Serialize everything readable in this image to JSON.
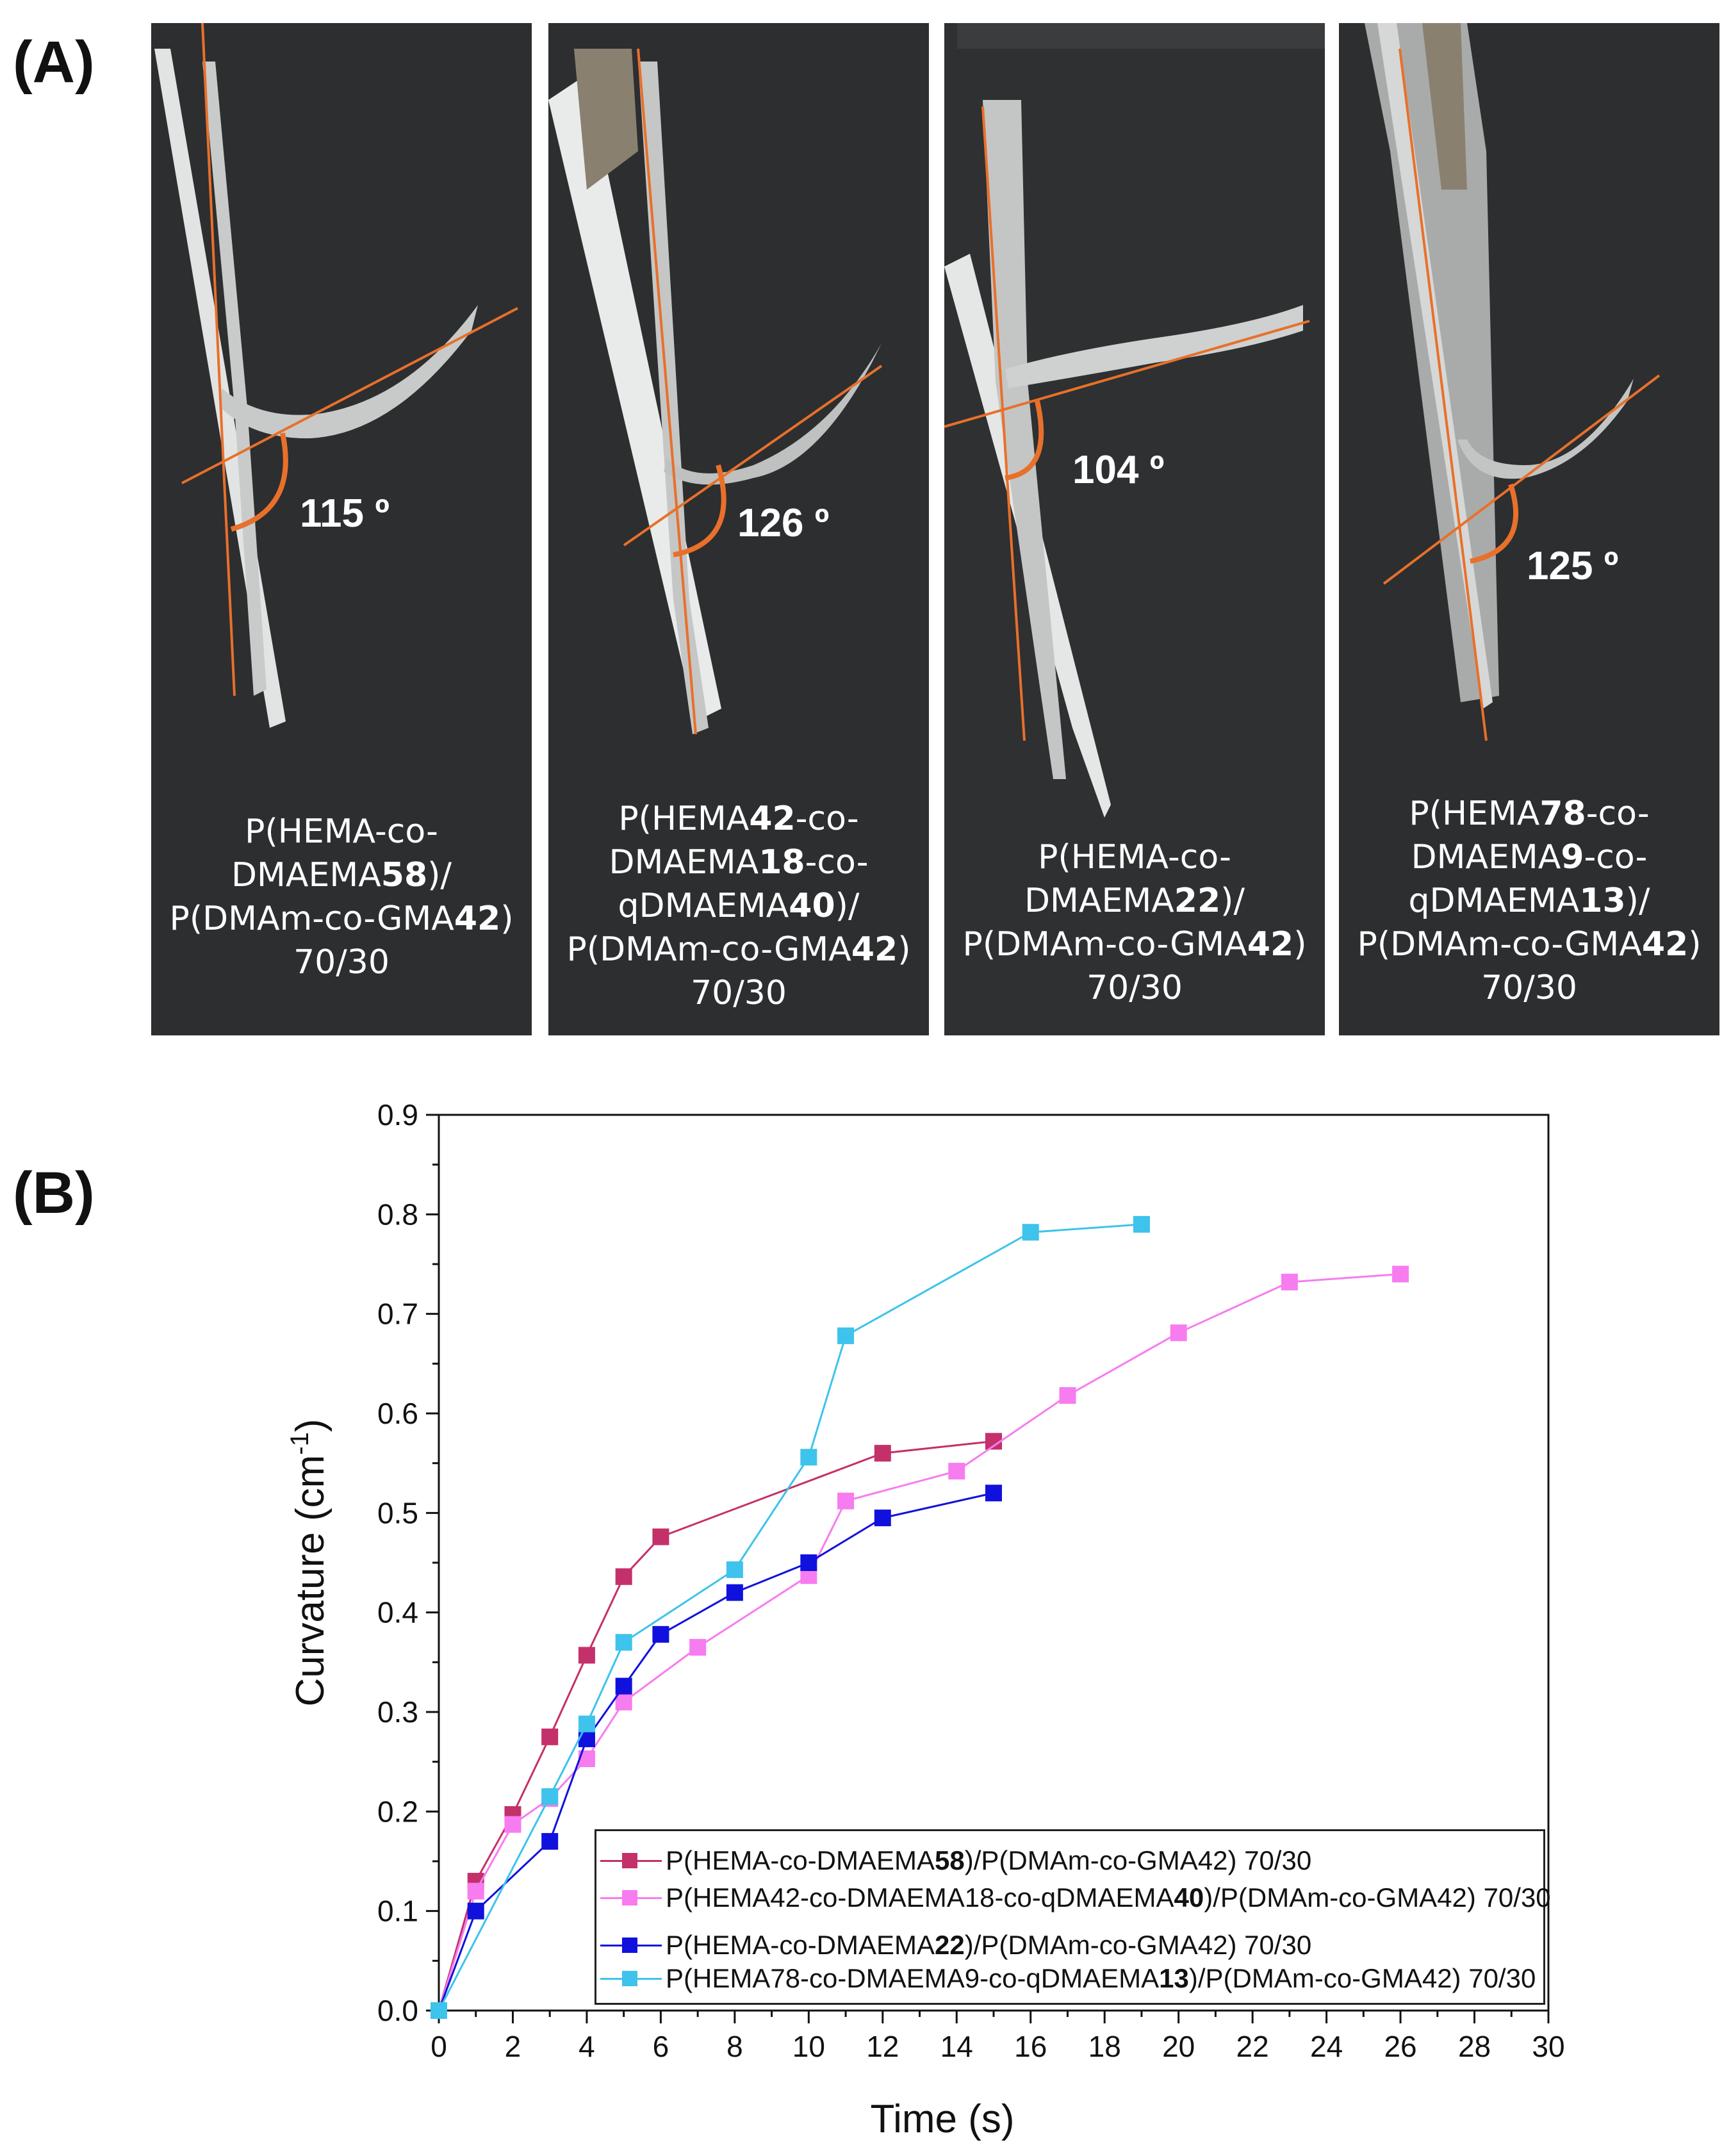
{
  "panel_a": {
    "label": "(A)",
    "photos": [
      {
        "angle": "115 º",
        "caption": [
          "P(HEMA-co-",
          "DMAEMA58)/",
          "P(DMAm-co-GMA42)",
          "70/30"
        ]
      },
      {
        "angle": "126 º",
        "caption": [
          "P(HEMA42-co-",
          "DMAEMA18-co-",
          "qDMAEMA40)/",
          "P(DMAm-co-GMA42)",
          "70/30"
        ]
      },
      {
        "angle": "104 º",
        "caption": [
          "P(HEMA-co-",
          "DMAEMA22)/",
          "P(DMAm-co-GMA42)",
          "70/30"
        ]
      },
      {
        "angle": "125 º",
        "caption": [
          "P(HEMA78-co-",
          "DMAEMA9-co-",
          "qDMAEMA13)/",
          "P(DMAm-co-GMA42)",
          "70/30"
        ]
      }
    ]
  },
  "panel_b": {
    "label": "(B)"
  },
  "colors": {
    "line_orange": "#e8702a",
    "photo_bg": "#2c2e30",
    "strip": "#e9ebea"
  },
  "chart_data": {
    "type": "line",
    "xlabel": "Time (s)",
    "ylabel": "Curvature (cm-1)",
    "xlim": [
      0,
      30
    ],
    "ylim": [
      0,
      0.9
    ],
    "xticks": [
      "0",
      "2",
      "4",
      "6",
      "8",
      "10",
      "12",
      "14",
      "16",
      "18",
      "20",
      "22",
      "24",
      "26",
      "28",
      "30"
    ],
    "yticks": [
      "0.0",
      "0.1",
      "0.2",
      "0.3",
      "0.4",
      "0.5",
      "0.6",
      "0.7",
      "0.8",
      "0.9"
    ],
    "legend_position": "bottom-right",
    "series": [
      {
        "name": "P(HEMA-co-DMAEMA58)/P(DMAm-co-GMA42) 70/30",
        "color": "#c4306a",
        "x": [
          0,
          1,
          2,
          3,
          4,
          5,
          6,
          12,
          15
        ],
        "y": [
          0,
          0.13,
          0.197,
          0.275,
          0.357,
          0.436,
          0.476,
          0.56,
          0.572
        ]
      },
      {
        "name": "P(HEMA42-co-DMAEMA18-co-qDMAEMA40)/P(DMAm-co-GMA42) 70/30",
        "color": "#f77cf0",
        "x": [
          0,
          1,
          2,
          3,
          4,
          5,
          7,
          10,
          11,
          14,
          17,
          20,
          23,
          26
        ],
        "y": [
          0,
          0.12,
          0.187,
          0.213,
          0.253,
          0.31,
          0.365,
          0.437,
          0.512,
          0.542,
          0.618,
          0.681,
          0.732,
          0.74
        ]
      },
      {
        "name": "P(HEMA-co-DMAEMA22)/P(DMAm-co-GMA42) 70/30",
        "color": "#1111dd",
        "x": [
          0,
          1,
          3,
          4,
          5,
          6,
          8,
          10,
          12,
          15
        ],
        "y": [
          0,
          0.1,
          0.17,
          0.273,
          0.326,
          0.378,
          0.42,
          0.45,
          0.495,
          0.52
        ]
      },
      {
        "name": "P(HEMA78-co-DMAEMA9-co-qDMAEMA13)/P(DMAm-co-GMA42) 70/30",
        "color": "#3ec3ec",
        "x": [
          0,
          3,
          4,
          5,
          8,
          10,
          11,
          16,
          19
        ],
        "y": [
          0,
          0.215,
          0.288,
          0.37,
          0.443,
          0.556,
          0.678,
          0.782,
          0.79
        ]
      }
    ]
  }
}
